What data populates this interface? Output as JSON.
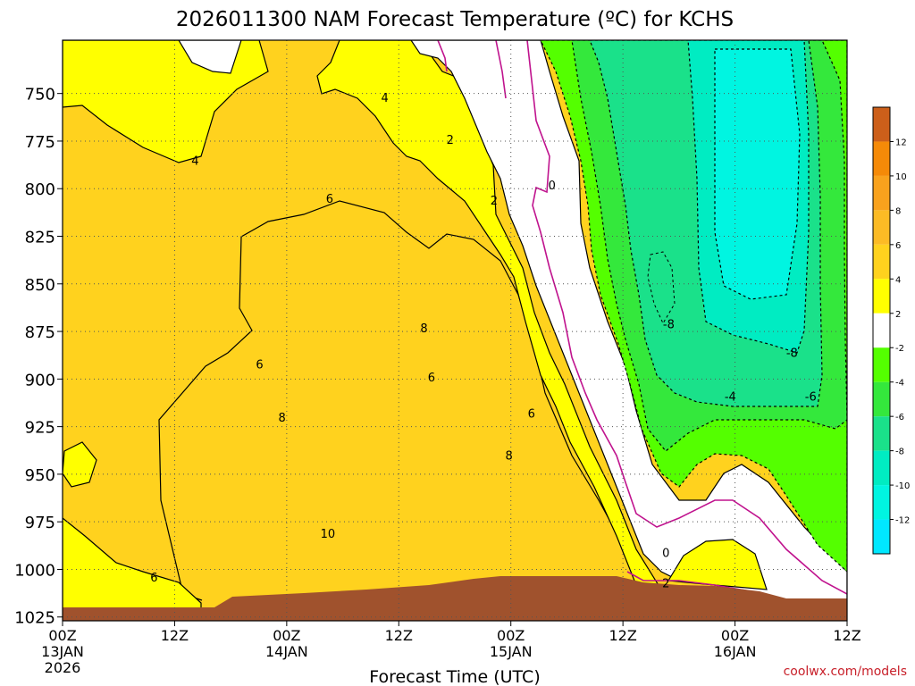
{
  "chart_data": {
    "type": "heatmap",
    "title": "2026011300 NAM Forecast Temperature (ºC) for KCHS",
    "xlabel": "Forecast Time (UTC)",
    "ylabel": "",
    "credit": "coolwx.com/models",
    "x_ticks": [
      {
        "hour": 0,
        "label": "00Z",
        "sub1": "13JAN",
        "sub2": "2026"
      },
      {
        "hour": 12,
        "label": "12Z",
        "sub1": "",
        "sub2": ""
      },
      {
        "hour": 24,
        "label": "00Z",
        "sub1": "14JAN",
        "sub2": ""
      },
      {
        "hour": 36,
        "label": "12Z",
        "sub1": "",
        "sub2": ""
      },
      {
        "hour": 48,
        "label": "00Z",
        "sub1": "15JAN",
        "sub2": ""
      },
      {
        "hour": 60,
        "label": "12Z",
        "sub1": "",
        "sub2": ""
      },
      {
        "hour": 72,
        "label": "00Z",
        "sub1": "16JAN",
        "sub2": ""
      },
      {
        "hour": 84,
        "label": "12Z",
        "sub1": "",
        "sub2": ""
      }
    ],
    "xlim_hours": [
      0,
      84
    ],
    "y_ticks": [
      750,
      775,
      800,
      825,
      850,
      875,
      900,
      925,
      950,
      975,
      1000,
      1025
    ],
    "ylim_hpa": [
      1027,
      722
    ],
    "grid": true,
    "colorbar": {
      "placement": "right",
      "bins": [
        {
          "min": 12,
          "max": 14,
          "color": "#cc5f1a"
        },
        {
          "min": 10,
          "max": 12,
          "color": "#f58a08"
        },
        {
          "min": 8,
          "max": 10,
          "color": "#f9a21d"
        },
        {
          "min": 6,
          "max": 8,
          "color": "#fcbb25"
        },
        {
          "min": 4,
          "max": 6,
          "color": "#ffd21e"
        },
        {
          "min": 2,
          "max": 4,
          "color": "#ffff00"
        },
        {
          "min": -2,
          "max": 2,
          "color": "#ffffff"
        },
        {
          "min": -4,
          "max": -2,
          "color": "#54ff00"
        },
        {
          "min": -6,
          "max": -4,
          "color": "#34e83c"
        },
        {
          "min": -8,
          "max": -6,
          "color": "#1ae18a"
        },
        {
          "min": -10,
          "max": -8,
          "color": "#00ecc2"
        },
        {
          "min": -12,
          "max": -10,
          "color": "#00f5e1"
        },
        {
          "min": -14,
          "max": -12,
          "color": "#00e8ff"
        }
      ],
      "labels": [
        "12",
        "10",
        "8",
        "6",
        "4",
        "2",
        "-2",
        "-4",
        "-6",
        "-8",
        "-10",
        "-12"
      ]
    },
    "contour_labels": [
      {
        "text": "4",
        "hour": 34.5,
        "hpa": 752
      },
      {
        "text": "4",
        "hour": 14.2,
        "hpa": 785
      },
      {
        "text": "2",
        "hour": 41.5,
        "hpa": 774
      },
      {
        "text": "2",
        "hour": 46.2,
        "hpa": 806
      },
      {
        "text": "0",
        "hour": 52.4,
        "hpa": 798
      },
      {
        "text": "6",
        "hour": 28.6,
        "hpa": 805
      },
      {
        "text": "6",
        "hour": 21.1,
        "hpa": 892
      },
      {
        "text": "8",
        "hour": 38.7,
        "hpa": 873
      },
      {
        "text": "6",
        "hour": 39.5,
        "hpa": 899
      },
      {
        "text": "8",
        "hour": 23.5,
        "hpa": 920
      },
      {
        "text": "6",
        "hour": 50.2,
        "hpa": 918
      },
      {
        "text": "8",
        "hour": 47.8,
        "hpa": 940
      },
      {
        "text": "10",
        "hour": 28.4,
        "hpa": 981
      },
      {
        "text": "6",
        "hour": 9.8,
        "hpa": 1004
      },
      {
        "text": "0",
        "hour": 64.6,
        "hpa": 991
      },
      {
        "text": "2",
        "hour": 64.6,
        "hpa": 1007
      },
      {
        "text": "-8",
        "hour": 64.9,
        "hpa": 871
      },
      {
        "text": "-8",
        "hour": 78.1,
        "hpa": 886
      },
      {
        "text": "-4",
        "hour": 71.5,
        "hpa": 909
      },
      {
        "text": "-6",
        "hour": 80.1,
        "hpa": 909
      }
    ]
  }
}
